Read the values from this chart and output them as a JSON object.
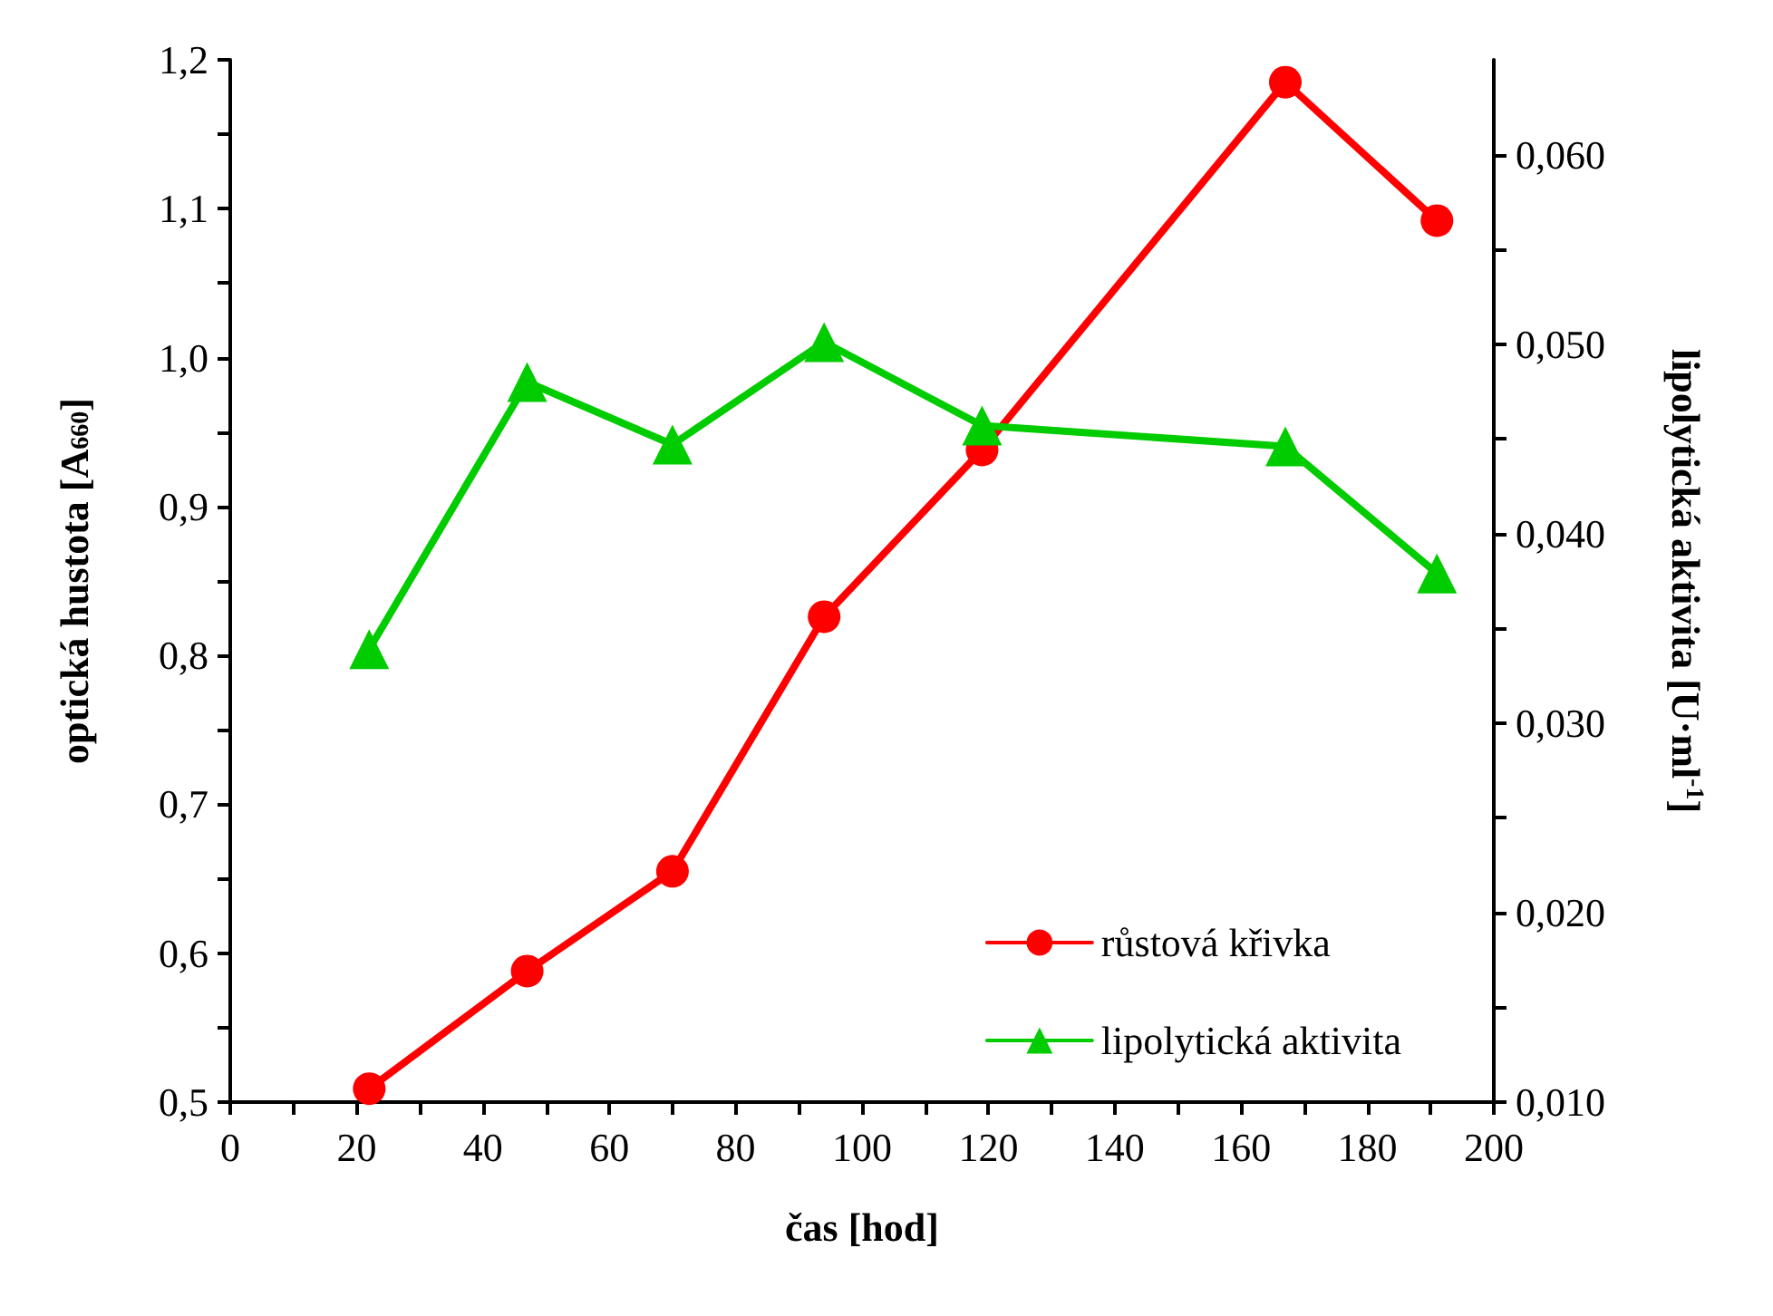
{
  "chart_data": {
    "type": "line",
    "xlabel": "čas [hod]",
    "ylabel": "optická hustota [A$_{660}$]",
    "y2label": "lipolytická aktivita [U·ml$^{-1}$]",
    "x": [
      22,
      47,
      70,
      94,
      119,
      167,
      191
    ],
    "series": [
      {
        "name": "růstová křivka",
        "color": "#ff0000",
        "marker": "circle",
        "values": [
          0.509,
          0.588,
          0.655,
          0.826,
          0.938,
          1.185,
          1.092
        ]
      },
      {
        "name": "lipolytická aktivita",
        "color": "#00cc00",
        "marker": "triangle",
        "axis": "y2",
        "values": [
          0.0339,
          0.048,
          0.0447,
          0.0501,
          0.0457,
          0.0446,
          0.0379
        ]
      }
    ],
    "xlim": [
      0,
      200
    ],
    "xticks": [
      0,
      {
        "value": 10,
        "label": null
      },
      20,
      {
        "value": 30,
        "label": null
      },
      40,
      {
        "value": 50,
        "label": null
      },
      60,
      {
        "value": 70,
        "label": null
      },
      80,
      {
        "value": 90,
        "label": null
      },
      100,
      {
        "value": 110,
        "label": null
      },
      120,
      {
        "value": 130,
        "label": null
      },
      140,
      {
        "value": 150,
        "label": null
      },
      160,
      {
        "value": 170,
        "label": null
      },
      180,
      {
        "value": 190,
        "label": null
      },
      200
    ],
    "ylim": [
      0.5,
      1.2
    ],
    "yticks": [
      {
        "value": 0.5,
        "label": "0,5"
      },
      {
        "value": 0.55,
        "label": null
      },
      {
        "value": 0.6,
        "label": "0,6"
      },
      {
        "value": 0.65,
        "label": null
      },
      {
        "value": 0.7,
        "label": "0,7"
      },
      {
        "value": 0.75,
        "label": null
      },
      {
        "value": 0.8,
        "label": "0,8"
      },
      {
        "value": 0.85,
        "label": null
      },
      {
        "value": 0.9,
        "label": "0,9"
      },
      {
        "value": 0.95,
        "label": null
      },
      {
        "value": 1.0,
        "label": "1,0"
      },
      {
        "value": 1.05,
        "label": null
      },
      {
        "value": 1.1,
        "label": "1,1"
      },
      {
        "value": 1.15,
        "label": null
      },
      {
        "value": 1.2,
        "label": "1,2"
      }
    ],
    "y2lim": [
      0.01,
      0.065
    ],
    "y2ticks": [
      {
        "value": 0.01,
        "label": "0,010"
      },
      {
        "value": 0.015,
        "label": null
      },
      {
        "value": 0.02,
        "label": "0,020"
      },
      {
        "value": 0.025,
        "label": null
      },
      {
        "value": 0.03,
        "label": "0,030"
      },
      {
        "value": 0.035,
        "label": null
      },
      {
        "value": 0.04,
        "label": "0,040"
      },
      {
        "value": 0.045,
        "label": null
      },
      {
        "value": 0.05,
        "label": "0,050"
      },
      {
        "value": 0.055,
        "label": null
      },
      {
        "value": 0.06,
        "label": "0,060"
      }
    ],
    "grid": false,
    "legend": "bottom right",
    "line_style": "solid"
  }
}
